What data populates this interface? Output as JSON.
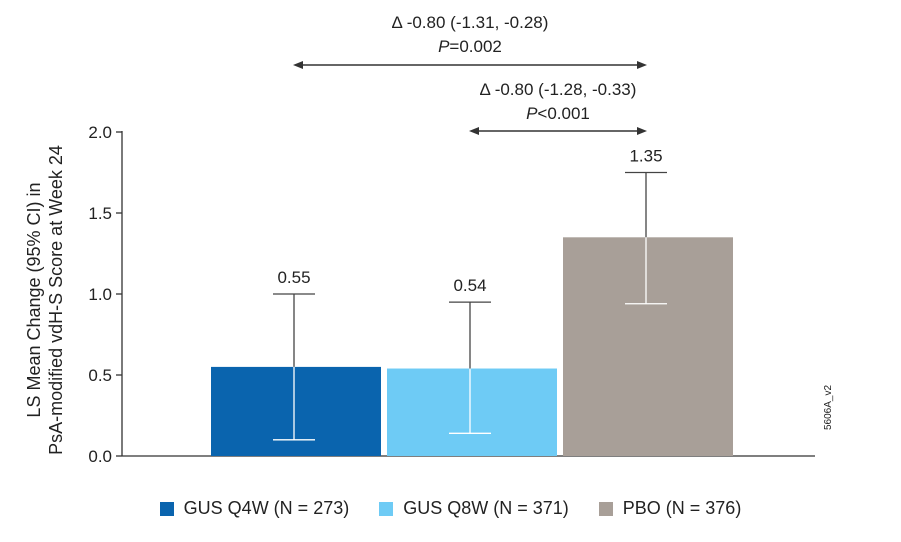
{
  "chart_data": {
    "type": "bar",
    "categories": [
      "GUS Q4W (N = 273)",
      "GUS Q8W (N = 371)",
      "PBO (N = 376)"
    ],
    "values": [
      0.55,
      0.54,
      1.35
    ],
    "value_labels": [
      "0.55",
      "0.54",
      "1.35"
    ],
    "ci_lower": [
      0.1,
      0.14,
      0.94
    ],
    "ci_upper": [
      1.0,
      0.95,
      1.75
    ],
    "colors": [
      "#0a64ae",
      "#6ecbf5",
      "#a89f98"
    ],
    "ylabel_line1": "LS Mean Change (95% CI) in",
    "ylabel_line2": "PsA-modified vdH-S Score at Week 24",
    "ylim": [
      0,
      2.0
    ],
    "yticks": [
      "0.0",
      "0.5",
      "1.0",
      "1.5",
      "2.0"
    ],
    "grid": false,
    "legend_position": "bottom",
    "comparisons": [
      {
        "from": 0,
        "to": 2,
        "delta": "Δ -0.80 (-1.31, -0.28)",
        "p_label": "P",
        "p_value": "=0.002"
      },
      {
        "from": 1,
        "to": 2,
        "delta": "Δ -0.80 (-1.28, -0.33)",
        "p_label": "P",
        "p_value": "<0.001"
      }
    ]
  },
  "figure_code": "5606A_v2"
}
